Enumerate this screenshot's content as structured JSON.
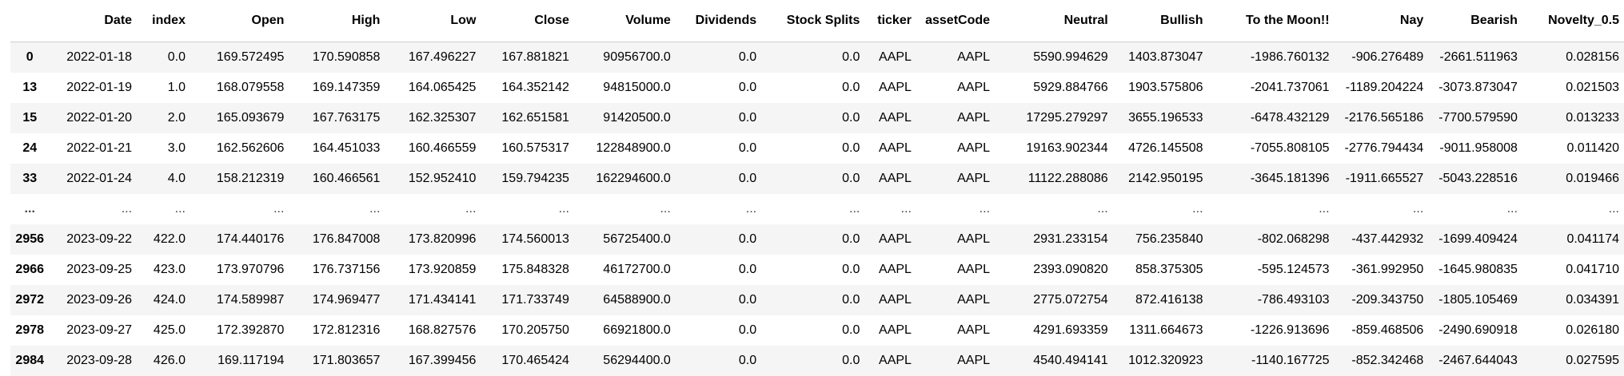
{
  "columns": [
    "",
    "Date",
    "index",
    "Open",
    "High",
    "Low",
    "Close",
    "Volume",
    "Dividends",
    "Stock Splits",
    "ticker",
    "assetCode",
    "Neutral",
    "Bullish",
    "To the Moon!!",
    "Nay",
    "Bearish",
    "Novelty_0.5"
  ],
  "rows": [
    [
      "0",
      "2022-01-18",
      "0.0",
      "169.572495",
      "170.590858",
      "167.496227",
      "167.881821",
      "90956700.0",
      "0.0",
      "0.0",
      "AAPL",
      "AAPL",
      "5590.994629",
      "1403.873047",
      "-1986.760132",
      "-906.276489",
      "-2661.511963",
      "0.028156"
    ],
    [
      "13",
      "2022-01-19",
      "1.0",
      "168.079558",
      "169.147359",
      "164.065425",
      "164.352142",
      "94815000.0",
      "0.0",
      "0.0",
      "AAPL",
      "AAPL",
      "5929.884766",
      "1903.575806",
      "-2041.737061",
      "-1189.204224",
      "-3073.873047",
      "0.021503"
    ],
    [
      "15",
      "2022-01-20",
      "2.0",
      "165.093679",
      "167.763175",
      "162.325307",
      "162.651581",
      "91420500.0",
      "0.0",
      "0.0",
      "AAPL",
      "AAPL",
      "17295.279297",
      "3655.196533",
      "-6478.432129",
      "-2176.565186",
      "-7700.579590",
      "0.013233"
    ],
    [
      "24",
      "2022-01-21",
      "3.0",
      "162.562606",
      "164.451033",
      "160.466559",
      "160.575317",
      "122848900.0",
      "0.0",
      "0.0",
      "AAPL",
      "AAPL",
      "19163.902344",
      "4726.145508",
      "-7055.808105",
      "-2776.794434",
      "-9011.958008",
      "0.011420"
    ],
    [
      "33",
      "2022-01-24",
      "4.0",
      "158.212319",
      "160.466561",
      "152.952410",
      "159.794235",
      "162294600.0",
      "0.0",
      "0.0",
      "AAPL",
      "AAPL",
      "11122.288086",
      "2142.950195",
      "-3645.181396",
      "-1911.665527",
      "-5043.228516",
      "0.019466"
    ],
    [
      "...",
      "...",
      "...",
      "...",
      "...",
      "...",
      "...",
      "...",
      "...",
      "...",
      "...",
      "...",
      "...",
      "...",
      "...",
      "...",
      "...",
      "..."
    ],
    [
      "2956",
      "2023-09-22",
      "422.0",
      "174.440176",
      "176.847008",
      "173.820996",
      "174.560013",
      "56725400.0",
      "0.0",
      "0.0",
      "AAPL",
      "AAPL",
      "2931.233154",
      "756.235840",
      "-802.068298",
      "-437.442932",
      "-1699.409424",
      "0.041174"
    ],
    [
      "2966",
      "2023-09-25",
      "423.0",
      "173.970796",
      "176.737156",
      "173.920859",
      "175.848328",
      "46172700.0",
      "0.0",
      "0.0",
      "AAPL",
      "AAPL",
      "2393.090820",
      "858.375305",
      "-595.124573",
      "-361.992950",
      "-1645.980835",
      "0.041710"
    ],
    [
      "2972",
      "2023-09-26",
      "424.0",
      "174.589987",
      "174.969477",
      "171.434141",
      "171.733749",
      "64588900.0",
      "0.0",
      "0.0",
      "AAPL",
      "AAPL",
      "2775.072754",
      "872.416138",
      "-786.493103",
      "-209.343750",
      "-1805.105469",
      "0.034391"
    ],
    [
      "2978",
      "2023-09-27",
      "425.0",
      "172.392870",
      "172.812316",
      "168.827576",
      "170.205750",
      "66921800.0",
      "0.0",
      "0.0",
      "AAPL",
      "AAPL",
      "4291.693359",
      "1311.664673",
      "-1226.913696",
      "-859.468506",
      "-2490.690918",
      "0.026180"
    ],
    [
      "2984",
      "2023-09-28",
      "426.0",
      "169.117194",
      "171.803657",
      "167.399456",
      "170.465424",
      "56294400.0",
      "0.0",
      "0.0",
      "AAPL",
      "AAPL",
      "4540.494141",
      "1012.320923",
      "-1140.167725",
      "-852.342468",
      "-2467.644043",
      "0.027595"
    ]
  ]
}
